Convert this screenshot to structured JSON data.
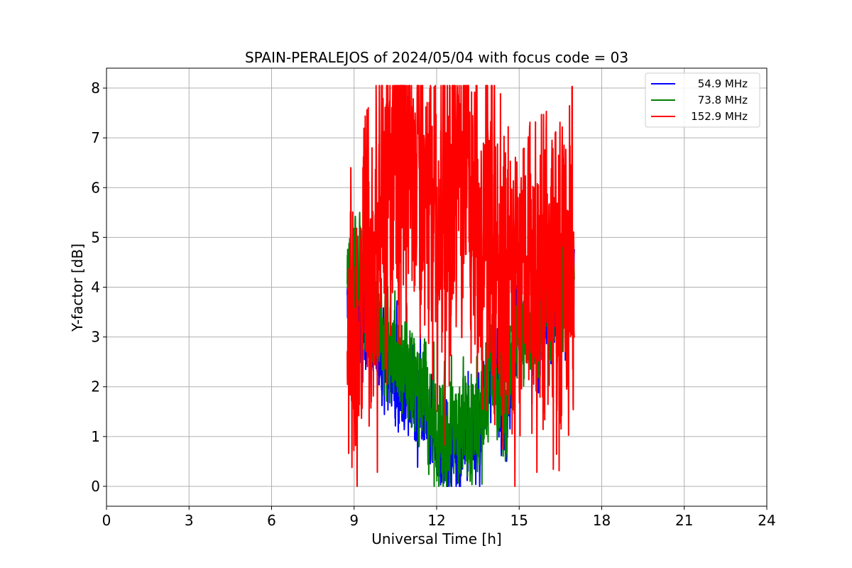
{
  "chart_data": {
    "type": "line",
    "title": "SPAIN-PERALEJOS of 2024/05/04 with focus code = 03",
    "xlabel": "Universal Time [h]",
    "ylabel": "Y-factor [dB]",
    "xlim": [
      0,
      24
    ],
    "ylim": [
      -0.4,
      8.4
    ],
    "xticks": [
      0,
      3,
      6,
      9,
      12,
      15,
      18,
      21,
      24
    ],
    "yticks": [
      0,
      1,
      2,
      3,
      4,
      5,
      6,
      7,
      8
    ],
    "grid": true,
    "legend_position": "top-right",
    "series": [
      {
        "name": "54.9 MHz",
        "color": "#0000ff",
        "anchors": [
          [
            8.75,
            3.9
          ],
          [
            9.0,
            3.6
          ],
          [
            9.5,
            3.2
          ],
          [
            10.0,
            2.6
          ],
          [
            10.5,
            2.2
          ],
          [
            11.0,
            2.0
          ],
          [
            11.5,
            1.6
          ],
          [
            12.0,
            0.9
          ],
          [
            12.5,
            0.7
          ],
          [
            13.0,
            0.8
          ],
          [
            13.5,
            1.1
          ],
          [
            14.0,
            2.3
          ],
          [
            14.5,
            1.2
          ],
          [
            15.0,
            3.5
          ],
          [
            15.5,
            3.0
          ],
          [
            16.0,
            3.5
          ],
          [
            16.5,
            3.8
          ],
          [
            17.0,
            4.1
          ]
        ],
        "amplitude": 0.9,
        "min": 0.0,
        "max": 5.0
      },
      {
        "name": "73.8 MHz",
        "color": "#008000",
        "anchors": [
          [
            8.75,
            4.2
          ],
          [
            9.0,
            4.4
          ],
          [
            9.5,
            3.9
          ],
          [
            10.0,
            3.1
          ],
          [
            10.5,
            2.6
          ],
          [
            11.0,
            2.3
          ],
          [
            11.5,
            1.8
          ],
          [
            12.0,
            1.1
          ],
          [
            12.5,
            1.0
          ],
          [
            13.0,
            1.3
          ],
          [
            13.5,
            1.2
          ],
          [
            14.0,
            2.6
          ],
          [
            14.5,
            1.4
          ],
          [
            15.0,
            3.6
          ],
          [
            15.5,
            3.1
          ],
          [
            16.0,
            3.5
          ],
          [
            16.5,
            4.0
          ],
          [
            17.0,
            4.2
          ]
        ],
        "amplitude": 1.1,
        "min": 0.0,
        "max": 5.5
      },
      {
        "name": "152.9 MHz",
        "color": "#ff0000",
        "anchors": [
          [
            8.75,
            3.0
          ],
          [
            9.0,
            2.8
          ],
          [
            9.5,
            4.0
          ],
          [
            10.0,
            5.5
          ],
          [
            10.5,
            6.5
          ],
          [
            11.0,
            7.0
          ],
          [
            11.5,
            6.0
          ],
          [
            12.0,
            5.2
          ],
          [
            12.5,
            6.0
          ],
          [
            13.0,
            6.7
          ],
          [
            13.5,
            5.0
          ],
          [
            14.0,
            5.5
          ],
          [
            14.5,
            4.3
          ],
          [
            15.0,
            4.0
          ],
          [
            15.5,
            3.6
          ],
          [
            16.0,
            4.5
          ],
          [
            16.5,
            4.2
          ],
          [
            17.0,
            4.8
          ]
        ],
        "amplitude": 3.2,
        "min": 0.0,
        "max": 8.05
      }
    ]
  }
}
